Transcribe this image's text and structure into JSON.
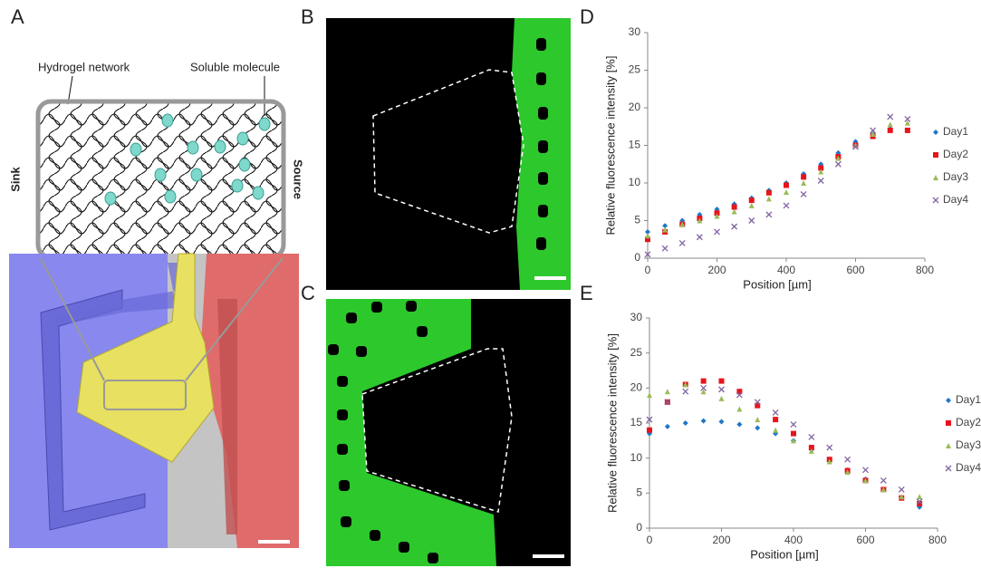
{
  "panel_labels": [
    "A",
    "B",
    "C",
    "D",
    "E"
  ],
  "diagram": {
    "hydrogel_label": "Hydrogel network",
    "molecule_label": "Soluble molecule",
    "sink_label": "Sink",
    "source_label": "Source"
  },
  "chart_data": [
    {
      "type": "scatter",
      "x_label": "Position [µm]",
      "y_label": "Relative fluorescence intensity [%]",
      "x": [
        0,
        50,
        100,
        150,
        200,
        250,
        300,
        350,
        400,
        450,
        500,
        550,
        600,
        650,
        700,
        750
      ],
      "series": [
        {
          "name": "Day1",
          "color": "#1f77c8",
          "marker": "diamond",
          "values": [
            3.5,
            4.3,
            5,
            5.8,
            6.5,
            7.2,
            8,
            9,
            10,
            11.2,
            12.5,
            14,
            15.5,
            16.5,
            17.2,
            17
          ]
        },
        {
          "name": "Day2",
          "color": "#e8141c",
          "marker": "square",
          "values": [
            2.5,
            3.5,
            4.5,
            5.3,
            6,
            6.8,
            7.7,
            8.7,
            9.7,
            10.8,
            12,
            13.5,
            15,
            16.2,
            17,
            17
          ]
        },
        {
          "name": "Day3",
          "color": "#9bbb59",
          "marker": "triangle",
          "values": [
            3,
            3.8,
            4.5,
            5,
            5.6,
            6.2,
            7,
            7.9,
            8.8,
            10,
            11.5,
            13.3,
            15,
            16.5,
            17.8,
            18
          ]
        },
        {
          "name": "Day4",
          "color": "#8064a2",
          "marker": "x",
          "values": [
            0.5,
            1.3,
            2,
            2.8,
            3.5,
            4.2,
            5,
            5.8,
            7,
            8.5,
            10.3,
            12.5,
            14.8,
            17,
            18.8,
            18.5
          ]
        }
      ],
      "xlim": [
        0,
        800
      ],
      "ylim": [
        0,
        30
      ],
      "xticks": [
        0,
        200,
        400,
        600,
        800
      ],
      "yticks": [
        0,
        5,
        10,
        15,
        20,
        25,
        30
      ],
      "grid": false,
      "legend": "right"
    },
    {
      "type": "scatter",
      "x_label": "Position [µm]",
      "y_label": "Relative fluorescence intensity [%]",
      "x": [
        0,
        50,
        100,
        150,
        200,
        250,
        300,
        350,
        400,
        450,
        500,
        550,
        600,
        650,
        700,
        750
      ],
      "series": [
        {
          "name": "Day1",
          "color": "#1f77c8",
          "marker": "diamond",
          "values": [
            13.5,
            14.5,
            15,
            15.3,
            15.2,
            14.8,
            14.3,
            13.5,
            12.5,
            11.2,
            9.8,
            8.3,
            7,
            5.5,
            4.3,
            3
          ]
        },
        {
          "name": "Day2",
          "color": "#e8141c",
          "marker": "square",
          "values": [
            14,
            18,
            20.5,
            21,
            21,
            19.5,
            17.5,
            15.5,
            13.5,
            11.5,
            9.8,
            8.2,
            6.8,
            5.5,
            4.3,
            3.5
          ]
        },
        {
          "name": "Day3",
          "color": "#9bbb59",
          "marker": "triangle",
          "values": [
            19,
            19.5,
            20.5,
            19.5,
            18.5,
            17,
            15.5,
            14,
            12.5,
            11,
            9.5,
            8,
            6.8,
            5.5,
            4.5,
            4.5
          ]
        },
        {
          "name": "Day4",
          "color": "#8064a2",
          "marker": "x",
          "values": [
            15.5,
            18,
            19.5,
            20,
            19.8,
            19,
            18,
            16.5,
            14.8,
            13,
            11.5,
            9.8,
            8.3,
            6.8,
            5.5,
            3.8
          ]
        }
      ],
      "xlim": [
        0,
        800
      ],
      "ylim": [
        0,
        30
      ],
      "xticks": [
        0,
        200,
        400,
        600,
        800
      ],
      "yticks": [
        0,
        5,
        10,
        15,
        20,
        25,
        30
      ],
      "grid": false,
      "legend": "right"
    }
  ]
}
